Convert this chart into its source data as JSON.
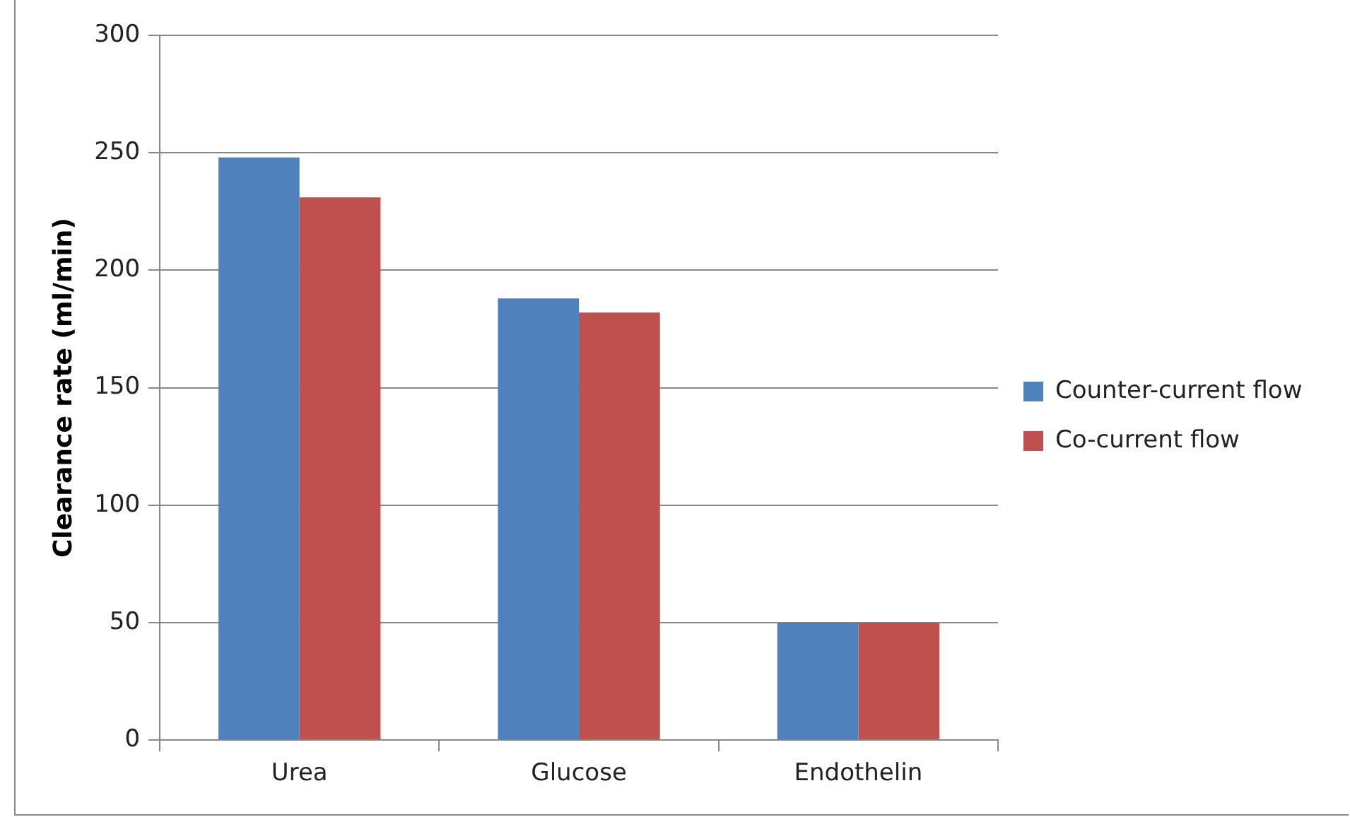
{
  "chart_data": {
    "type": "bar",
    "ylabel": "Clearance rate (ml/min)",
    "categories": [
      "Urea",
      "Glucose",
      "Endothelin"
    ],
    "series": [
      {
        "name": "Counter-current flow",
        "color": "#4f81bd",
        "values": [
          248,
          188,
          50
        ]
      },
      {
        "name": "Co-current flow",
        "color": "#c0504d",
        "values": [
          231,
          182,
          50
        ]
      }
    ],
    "ylim": [
      0,
      300
    ],
    "yticks": [
      0,
      50,
      100,
      150,
      200,
      250,
      300
    ],
    "grid": "y",
    "legend": "right"
  }
}
